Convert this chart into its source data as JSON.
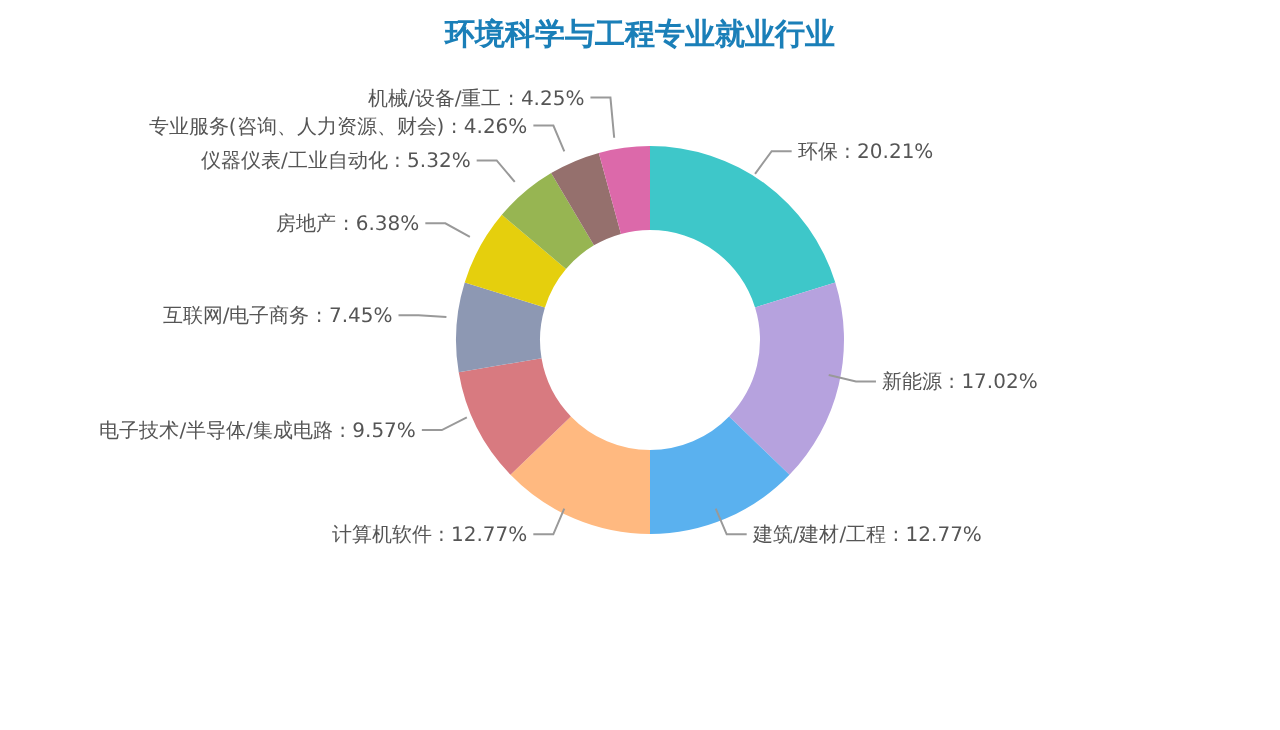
{
  "chart_data": {
    "type": "donut",
    "title": "环境科学与工程专业就业行业",
    "categories": [
      "环保",
      "新能源",
      "建筑/建材/工程",
      "计算机软件",
      "电子技术/半导体/集成电路",
      "互联网/电子商务",
      "房地产",
      "仪器仪表/工业自动化",
      "专业服务(咨询、人力资源、财会)",
      "机械/设备/重工"
    ],
    "values": [
      20.21,
      17.02,
      12.77,
      12.77,
      9.57,
      7.45,
      6.38,
      5.32,
      4.26,
      4.25
    ],
    "value_labels": [
      "20.21%",
      "17.02%",
      "12.77%",
      "12.77%",
      "9.57%",
      "7.45%",
      "6.38%",
      "5.32%",
      "4.26%",
      "4.25%"
    ],
    "colors": [
      "#3ec7c9",
      "#b6a2de",
      "#5ab1ef",
      "#ffb980",
      "#d87a80",
      "#8d98b3",
      "#e5cf0d",
      "#97b552",
      "#95706d",
      "#dc69aa"
    ],
    "legend": false
  }
}
